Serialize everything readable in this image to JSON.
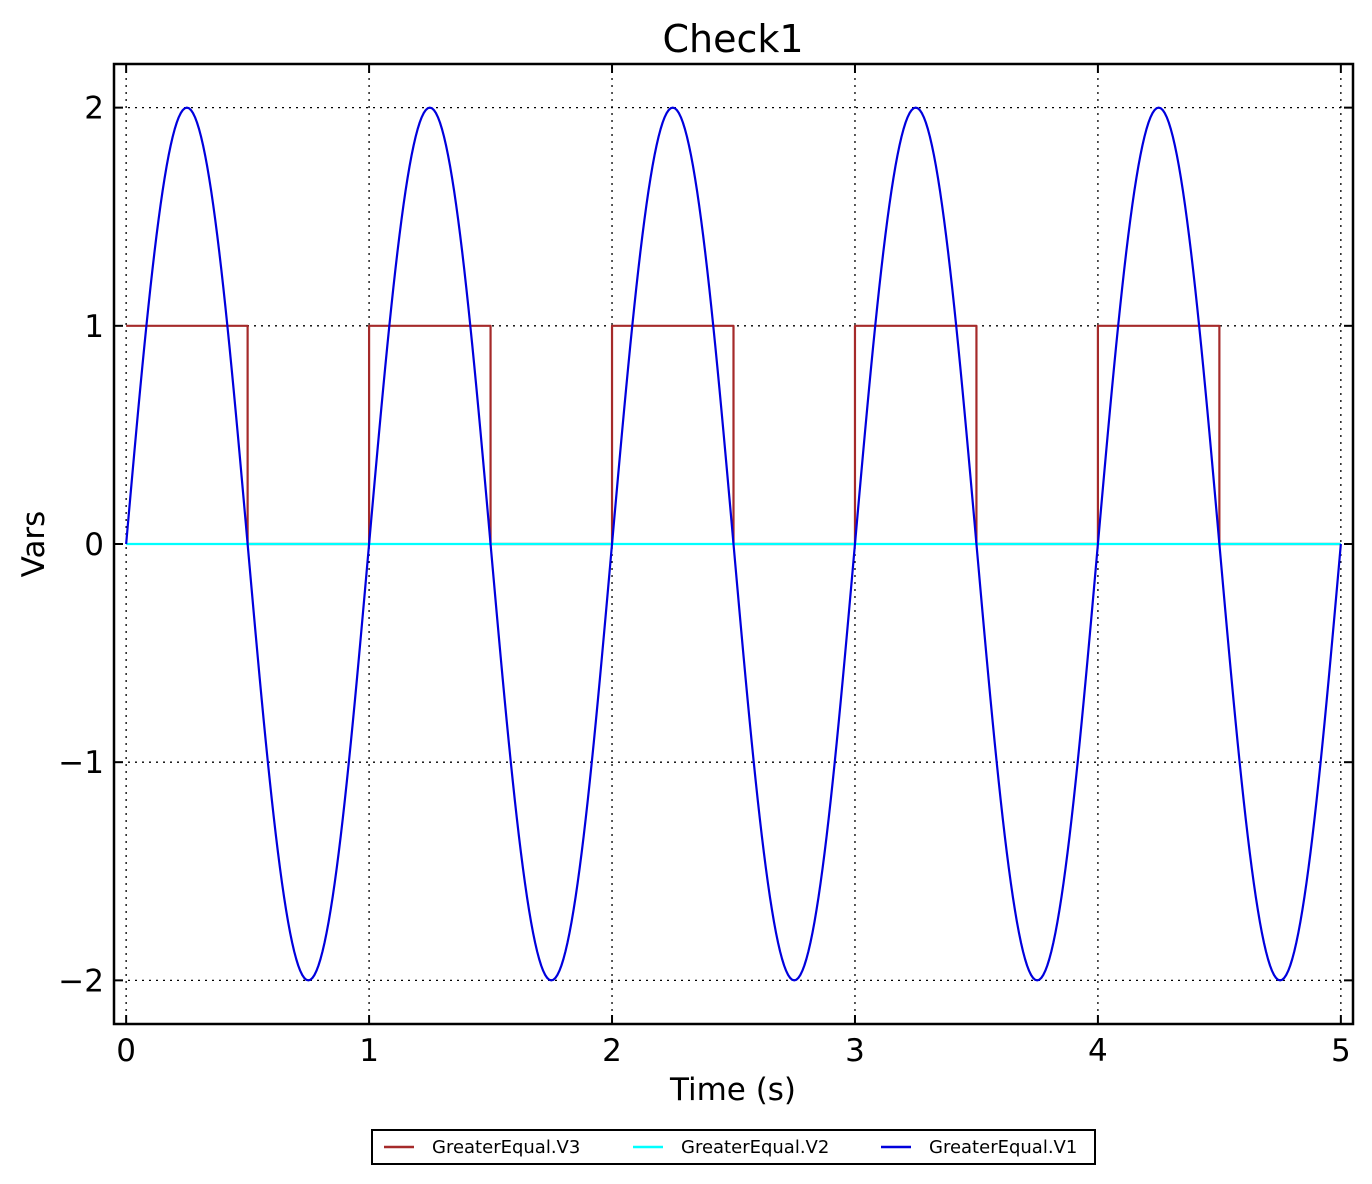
{
  "chart_data": {
    "type": "line",
    "title": "Check1",
    "xlabel": "Time (s)",
    "ylabel": "Vars",
    "xlim": [
      -0.05,
      5.05
    ],
    "ylim": [
      -2.2,
      2.2
    ],
    "xticks": [
      0,
      1,
      2,
      3,
      4,
      5
    ],
    "xtick_labels": [
      "0",
      "1",
      "2",
      "3",
      "4",
      "5"
    ],
    "yticks": [
      -2,
      -1,
      0,
      1,
      2
    ],
    "ytick_labels": [
      "−2",
      "−1",
      "0",
      "1",
      "2"
    ],
    "grid": true,
    "legend": "bottom-center",
    "series": [
      {
        "name": "GreaterEqual.V3",
        "color": "#a52a2a",
        "x": [
          0,
          0.5,
          0.5,
          1.0,
          1.0,
          1.5,
          1.5,
          2.0,
          2.0,
          2.5,
          2.5,
          3.0,
          3.0,
          3.5,
          3.5,
          4.0,
          4.0,
          4.5,
          4.5,
          5.0
        ],
        "y": [
          1,
          1,
          0,
          0,
          1,
          1,
          0,
          0,
          1,
          1,
          0,
          0,
          1,
          1,
          0,
          0,
          1,
          1,
          0,
          0
        ]
      },
      {
        "name": "GreaterEqual.V2",
        "color": "#00ffff",
        "x": [
          0,
          5
        ],
        "y": [
          0,
          0
        ]
      },
      {
        "name": "GreaterEqual.V1",
        "color": "#0000dd",
        "x": [
          0,
          0.125,
          0.25,
          0.375,
          0.5,
          0.625,
          0.75,
          0.875,
          1.0,
          1.125,
          1.25,
          1.375,
          1.5,
          1.625,
          1.75,
          1.875,
          2.0,
          2.125,
          2.25,
          2.375,
          2.5,
          2.625,
          2.75,
          2.875,
          3.0,
          3.125,
          3.25,
          3.375,
          3.5,
          3.625,
          3.75,
          3.875,
          4.0,
          4.125,
          4.25,
          4.375,
          4.5,
          4.625,
          4.75,
          4.875,
          5.0
        ],
        "y": [
          0,
          1.414,
          2,
          1.414,
          0,
          -1.414,
          -2,
          -1.414,
          0,
          1.414,
          2,
          1.414,
          0,
          -1.414,
          -2,
          -1.414,
          0,
          1.414,
          2,
          1.414,
          0,
          -1.414,
          -2,
          -1.414,
          0,
          1.414,
          2,
          1.414,
          0,
          -1.414,
          -2,
          -1.414,
          0,
          1.414,
          2,
          1.414,
          0,
          -1.414,
          -2,
          -1.414,
          0
        ]
      }
    ]
  }
}
